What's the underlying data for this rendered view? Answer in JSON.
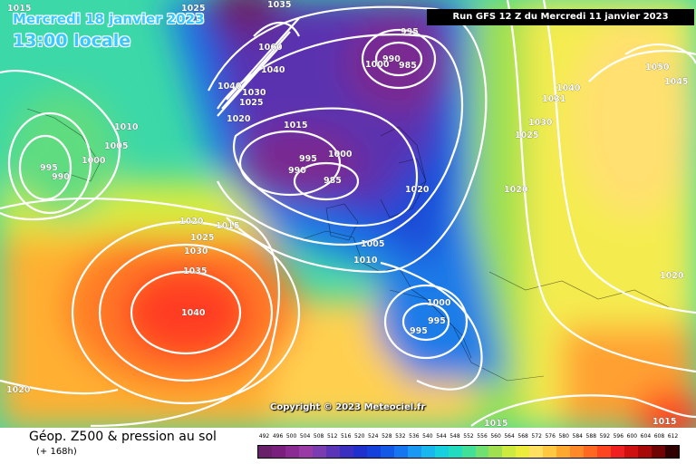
{
  "header": {
    "date_title": "Mercredi 18 janvier 2023",
    "local_time": "13:00 locale",
    "run_info": "Run GFS 12 Z du Mercredi 11 janvier 2023"
  },
  "copyright": "Copyright © 2023 Meteociel.fr",
  "legend": {
    "title": "Géop. Z500 & pression au sol",
    "forecast_hour": "(+ 168h)",
    "scale_values": [
      "492",
      "496",
      "500",
      "504",
      "508",
      "512",
      "516",
      "520",
      "524",
      "528",
      "532",
      "536",
      "540",
      "544",
      "548",
      "552",
      "556",
      "560",
      "564",
      "568",
      "572",
      "576",
      "580",
      "584",
      "588",
      "592",
      "596",
      "600",
      "604",
      "608",
      "612"
    ],
    "scale_colors": [
      "#6a1f6a",
      "#7a1f7e",
      "#8a2a92",
      "#9a3aa6",
      "#7a3cb0",
      "#5a35b8",
      "#3a2fc0",
      "#1f30cc",
      "#1540dc",
      "#1458e8",
      "#1676f0",
      "#1a98f2",
      "#18b8ee",
      "#16d0e0",
      "#22dcc0",
      "#40e098",
      "#70e070",
      "#a0e050",
      "#ccea40",
      "#ecec3c",
      "#ffe060",
      "#ffc840",
      "#ffa830",
      "#ff8828",
      "#ff6820",
      "#ff4420",
      "#f02020",
      "#d01010",
      "#a80808",
      "#700404",
      "#300000"
    ]
  },
  "map": {
    "pressure_labels": [
      "1015",
      "1025",
      "1035",
      "1060",
      "1040",
      "1040",
      "1030",
      "1025",
      "1020",
      "1015",
      "995",
      "990",
      "985",
      "1000",
      "995",
      "990",
      "985",
      "1000",
      "1010",
      "1005",
      "1000",
      "995",
      "990",
      "1020",
      "1015",
      "1025",
      "1030",
      "1035",
      "1040",
      "1005",
      "1010",
      "1000",
      "995",
      "995",
      "1020",
      "1030",
      "1025",
      "1040",
      "1031",
      "1050",
      "1045",
      "1020",
      "1020",
      "1015",
      "1015",
      "1020"
    ]
  }
}
